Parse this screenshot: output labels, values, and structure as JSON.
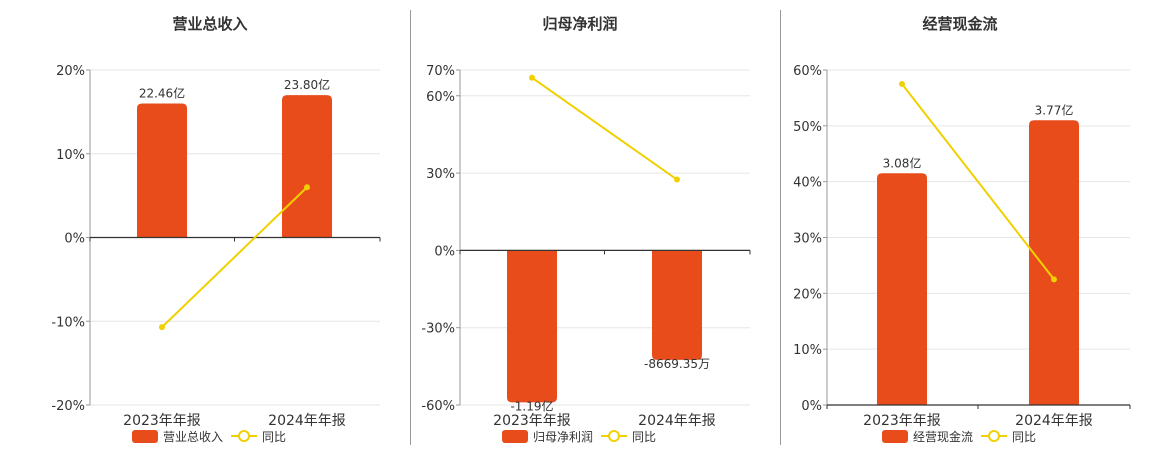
{
  "colors": {
    "bar": "#e84c1b",
    "line": "#f0d000",
    "grid": "#e6e6e6",
    "axis": "#333333",
    "text": "#333333"
  },
  "chart_data": [
    {
      "type": "bar",
      "title": "营业总收入",
      "categories": [
        "2023年年报",
        "2024年年报"
      ],
      "bar_series": {
        "name": "营业总收入",
        "pct_values": [
          16.0,
          17.0
        ],
        "labels": [
          "22.46亿",
          "23.80亿"
        ]
      },
      "line_series": {
        "name": "同比",
        "values": [
          -10.7,
          6.0
        ]
      },
      "ylim": [
        -20,
        20
      ],
      "ticks": [
        20,
        10,
        0,
        -10,
        -20
      ],
      "tick_labels": [
        "20%",
        "10%",
        "0%",
        "-10%",
        "-20%"
      ],
      "grid": true,
      "legend": "bottom"
    },
    {
      "type": "bar",
      "title": "归母净利润",
      "categories": [
        "2023年年报",
        "2024年年报"
      ],
      "bar_series": {
        "name": "归母净利润",
        "pct_values": [
          -59.0,
          -42.5
        ],
        "labels": [
          "-1.19亿",
          "-8669.35万"
        ]
      },
      "line_series": {
        "name": "同比",
        "values": [
          67.0,
          27.5
        ]
      },
      "ylim": [
        -60,
        70
      ],
      "ticks": [
        70,
        60,
        30,
        0,
        -30,
        -60
      ],
      "tick_labels": [
        "70%",
        "60%",
        "30%",
        "0%",
        "-30%",
        "-60%"
      ],
      "grid": true,
      "legend": "bottom"
    },
    {
      "type": "bar",
      "title": "经营现金流",
      "categories": [
        "2023年年报",
        "2024年年报"
      ],
      "bar_series": {
        "name": "经营现金流",
        "pct_values": [
          41.5,
          51.0
        ],
        "labels": [
          "3.08亿",
          "3.77亿"
        ]
      },
      "line_series": {
        "name": "同比",
        "values": [
          57.5,
          22.5
        ]
      },
      "ylim": [
        0,
        60
      ],
      "ticks": [
        60,
        50,
        40,
        30,
        20,
        10,
        0
      ],
      "tick_labels": [
        "60%",
        "50%",
        "40%",
        "30%",
        "20%",
        "10%",
        "0%"
      ],
      "grid": true,
      "legend": "bottom"
    }
  ]
}
